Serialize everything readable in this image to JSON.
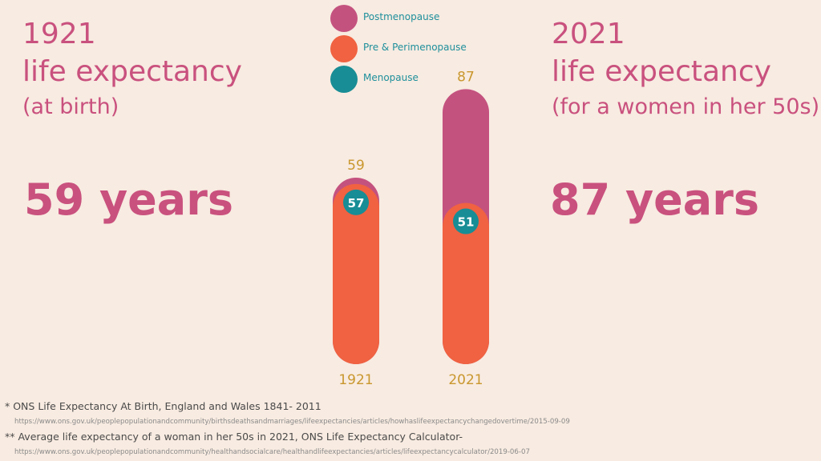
{
  "left": {
    "year": "1921",
    "title": "life expectancy",
    "subtitle": "(at birth)",
    "value": "59 years"
  },
  "right": {
    "year": "2021",
    "title": "life expectancy",
    "subtitle": "(for a women in her 50s)",
    "value": "87 years"
  },
  "legend": [
    {
      "label": "Postmenopause",
      "color": "#c4527f"
    },
    {
      "label": "Pre & Perimenopause",
      "color": "#f06241"
    },
    {
      "label": "Menopause",
      "color": "#188d95"
    }
  ],
  "chart_data": {
    "type": "bar",
    "categories": [
      "1921",
      "2021"
    ],
    "series": [
      {
        "name": "Pre & Perimenopause",
        "values": [
          57,
          51
        ]
      },
      {
        "name": "Postmenopause",
        "values": [
          59,
          87
        ]
      }
    ],
    "menopause_age": [
      57,
      51
    ],
    "totals": [
      59,
      87
    ],
    "colors": {
      "post": "#c4527f",
      "pre": "#f06241",
      "meno": "#188d95",
      "label": "#c9972e",
      "menoText": "#ffffff"
    }
  },
  "footnotes": {
    "note1": "*  ONS Life Expectancy At Birth, England and Wales 1841- 2011",
    "url1": "https://www.ons.gov.uk/peoplepopulationandcommunity/birthsdeathsandmarriages/lifeexpectancies/articles/howhaslifeexpectancychangedovertime/2015-09-09",
    "note2": "** Average life expectancy of a woman in her 50s in 2021, ONS Life Expectancy Calculator-",
    "url2": "https://www.ons.gov.uk/peoplepopulationandcommunity/healthandsocialcare/healthandlifeexpectancies/articles/lifeexpectancycalculator/2019-06-07"
  }
}
